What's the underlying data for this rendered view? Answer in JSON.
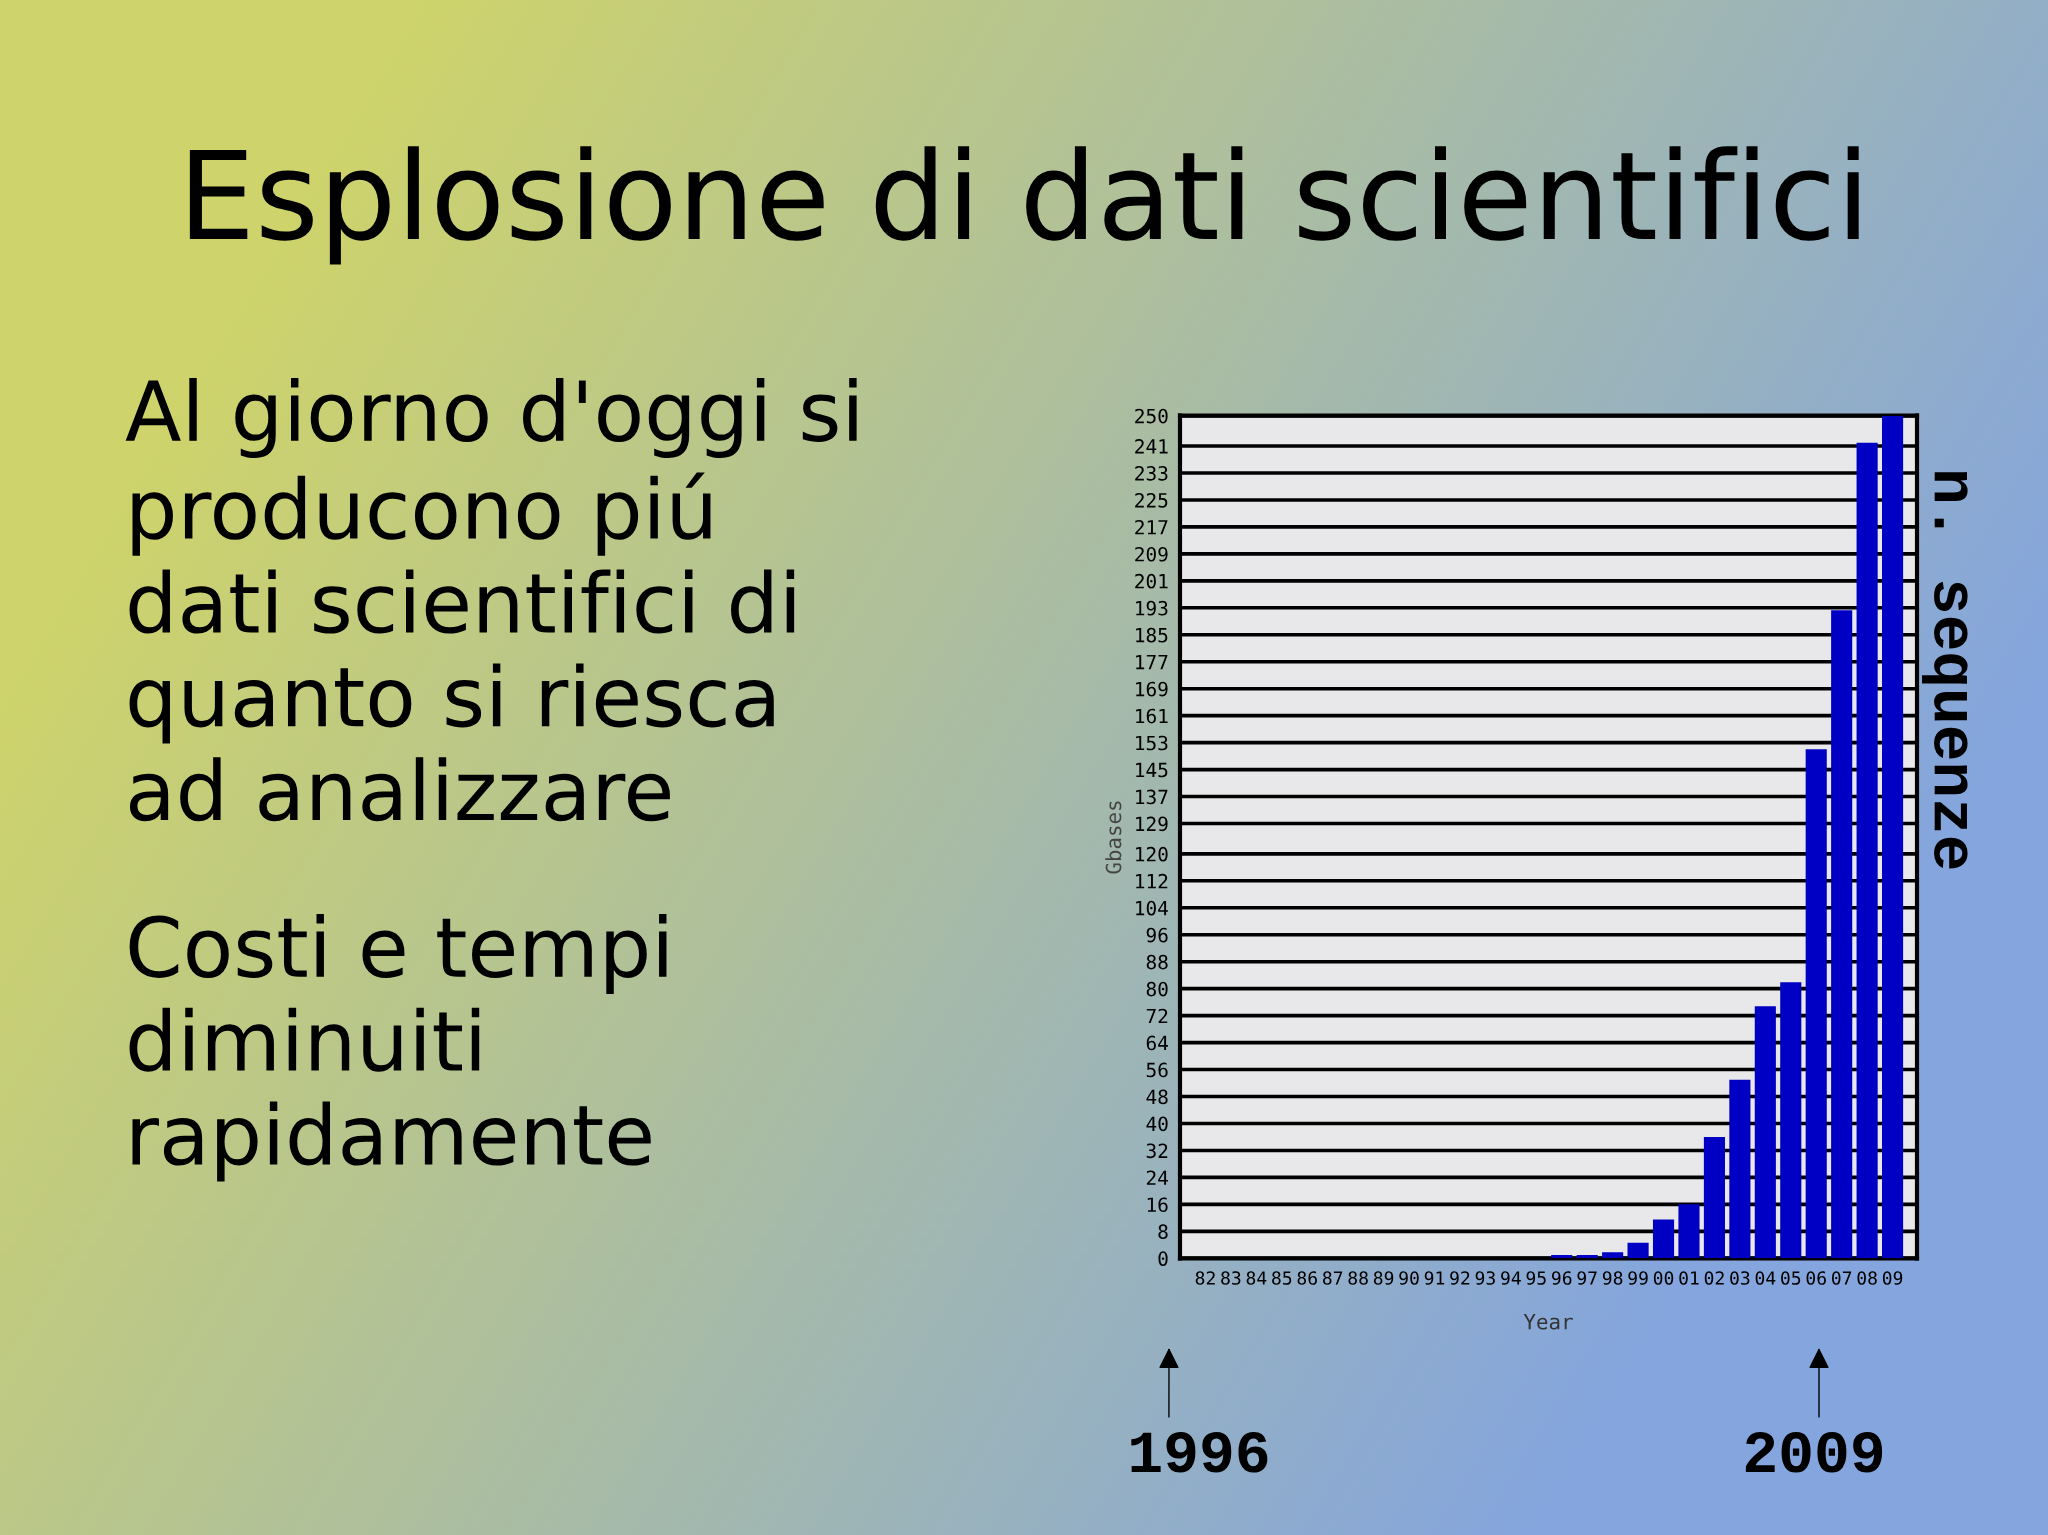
{
  "chart_data": {
    "type": "bar",
    "title": "Esplosione di dati scientifici",
    "xlabel": "Year",
    "ylabel": "Gbases",
    "annotations": [
      "Al giorno d'oggi si producono piú dati scientifici di quanto si riesca ad analizzare",
      "Costi e tempi diminuiti rapidamente",
      "n. sequenze",
      "1996",
      "2009"
    ],
    "categories": [
      "82",
      "83",
      "84",
      "85",
      "86",
      "87",
      "88",
      "89",
      "90",
      "91",
      "92",
      "93",
      "94",
      "95",
      "96",
      "97",
      "98",
      "99",
      "00",
      "01",
      "02",
      "03",
      "04",
      "05",
      "06",
      "07",
      "08",
      "09"
    ],
    "values": [
      0,
      0,
      0,
      0,
      0,
      0,
      0,
      0,
      0,
      0,
      0,
      0,
      0,
      0,
      1.0,
      1.0,
      1.8,
      4.6,
      11.5,
      16,
      36,
      53,
      74.8,
      81.9,
      151,
      192.3,
      242,
      250
    ],
    "color": "#0000c4",
    "ylim": [
      0,
      250
    ],
    "yticks": [
      0,
      8,
      16,
      24,
      32,
      40,
      48,
      56,
      64,
      72,
      80,
      88,
      96,
      104,
      112,
      120,
      129,
      137,
      145,
      153,
      161,
      169,
      177,
      185,
      193,
      201,
      209,
      217,
      225,
      233,
      241,
      250
    ],
    "grid": "y"
  }
}
